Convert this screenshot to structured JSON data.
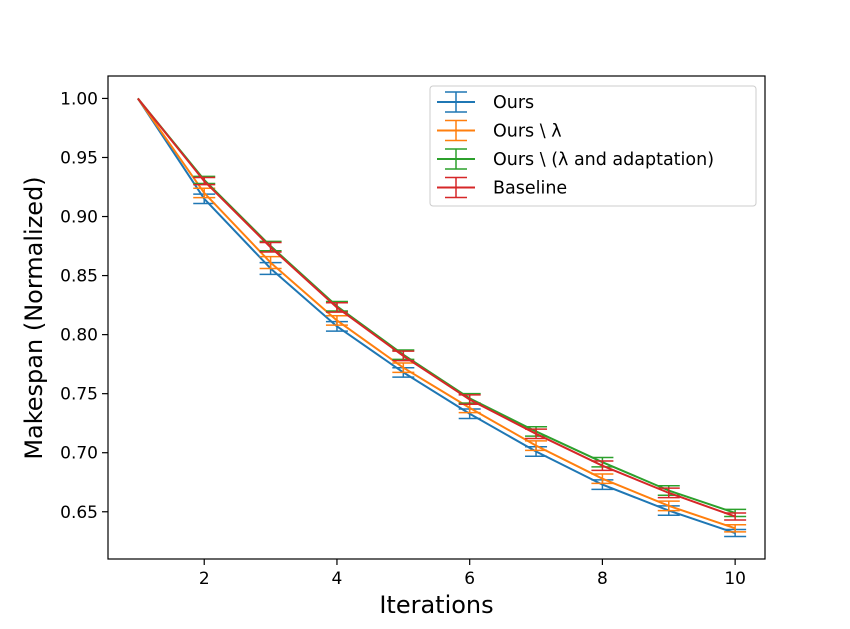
{
  "chart_data": {
    "type": "line",
    "title": "",
    "xlabel": "Iterations",
    "ylabel": "Makespan (Normalized)",
    "xlim": [
      0.55,
      10.45
    ],
    "ylim": [
      0.61,
      1.019
    ],
    "xticks": [
      2,
      4,
      6,
      8,
      10
    ],
    "xtick_labels": [
      "2",
      "4",
      "6",
      "8",
      "10"
    ],
    "yticks": [
      0.65,
      0.7,
      0.75,
      0.8,
      0.85,
      0.9,
      0.95,
      1.0
    ],
    "ytick_labels": [
      "0.65",
      "0.70",
      "0.75",
      "0.80",
      "0.85",
      "0.90",
      "0.95",
      "1.00"
    ],
    "grid": false,
    "legend_position": "top-right",
    "x": [
      1,
      2,
      3,
      4,
      5,
      6,
      7,
      8,
      9,
      10
    ],
    "series": [
      {
        "name": "Ours",
        "color": "#1f77b4",
        "values": [
          1.0,
          0.915,
          0.856,
          0.807,
          0.768,
          0.733,
          0.701,
          0.673,
          0.651,
          0.632
        ],
        "errors": [
          0.0,
          0.004,
          0.005,
          0.004,
          0.004,
          0.004,
          0.004,
          0.004,
          0.004,
          0.003
        ]
      },
      {
        "name": "Ours \\ λ",
        "color": "#ff7f0e",
        "values": [
          1.0,
          0.92,
          0.861,
          0.812,
          0.772,
          0.738,
          0.706,
          0.678,
          0.655,
          0.636
        ],
        "errors": [
          0.0,
          0.004,
          0.005,
          0.004,
          0.004,
          0.004,
          0.004,
          0.004,
          0.004,
          0.003
        ]
      },
      {
        "name": "Ours \\ (λ and adaptation)",
        "color": "#2ca02c",
        "values": [
          1.0,
          0.931,
          0.875,
          0.824,
          0.783,
          0.746,
          0.718,
          0.692,
          0.668,
          0.649
        ],
        "errors": [
          0.0,
          0.003,
          0.004,
          0.004,
          0.004,
          0.004,
          0.004,
          0.004,
          0.004,
          0.003
        ]
      },
      {
        "name": "Baseline",
        "color": "#d62728",
        "values": [
          1.0,
          0.93,
          0.874,
          0.823,
          0.782,
          0.745,
          0.716,
          0.689,
          0.666,
          0.646
        ],
        "errors": [
          0.0,
          0.003,
          0.004,
          0.004,
          0.004,
          0.004,
          0.004,
          0.004,
          0.004,
          0.003
        ]
      }
    ]
  }
}
